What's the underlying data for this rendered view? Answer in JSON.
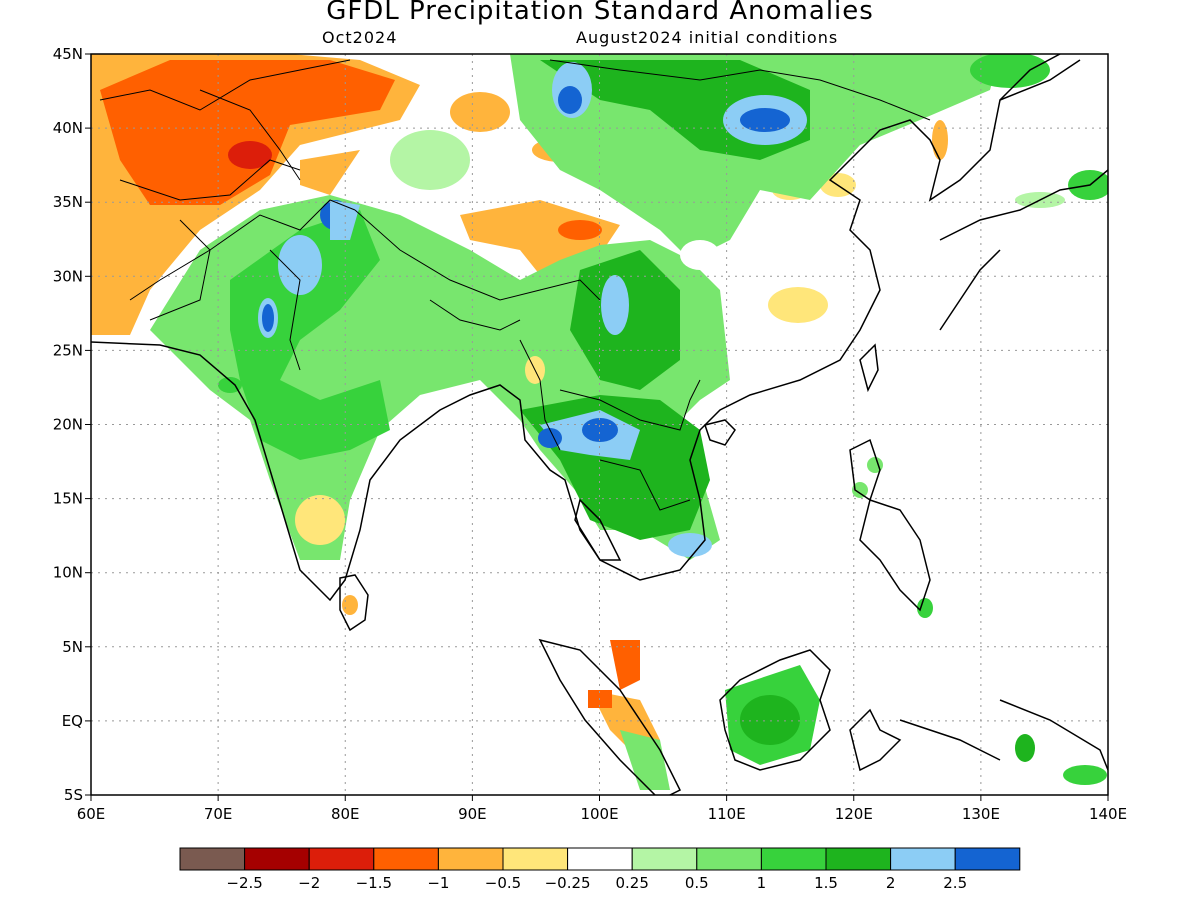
{
  "title": "GFDL Precipitation Standard Anomalies",
  "subtitle_left": "Oct2024",
  "subtitle_right": "August2024 initial conditions",
  "lat_labels": [
    "45N",
    "40N",
    "35N",
    "30N",
    "25N",
    "20N",
    "15N",
    "10N",
    "5N",
    "EQ",
    "5S"
  ],
  "lon_labels": [
    "60E",
    "70E",
    "80E",
    "90E",
    "100E",
    "110E",
    "120E",
    "130E",
    "140E"
  ],
  "colorbar": {
    "colors": [
      "#7a5a50",
      "#a50000",
      "#dc1e0a",
      "#ff6000",
      "#ffb43c",
      "#ffe67a",
      "#ffffff",
      "#b4f5a5",
      "#78e66e",
      "#37d23c",
      "#1eb41e",
      "#8ccdf5",
      "#1464d2"
    ],
    "labels": [
      "−2.5",
      "−2",
      "−1.5",
      "−1",
      "−0.5",
      "−0.25",
      "0.25",
      "0.5",
      "1",
      "1.5",
      "2",
      "2.5"
    ]
  }
}
